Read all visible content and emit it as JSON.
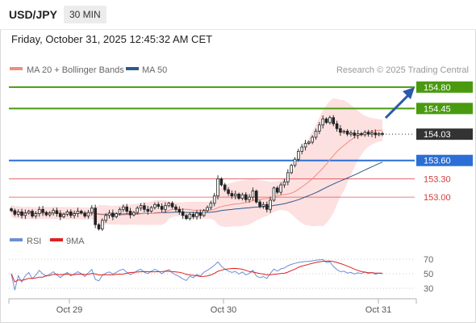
{
  "header": {
    "symbol": "USD/JPY",
    "timeframe": "30 MIN"
  },
  "datetime": "Friday, October 31, 2025 12:45:32 AM CET",
  "legend": {
    "ma20": "MA 20 + Bollinger Bands",
    "ma50": "MA 50",
    "ma20_color": "#f28b82",
    "ma50_color": "#2d5a8c"
  },
  "copyright": "Research © 2025 Trading Central",
  "rsi_legend": {
    "rsi": "RSI",
    "ma": "9MA",
    "rsi_color": "#6b8fd6",
    "ma_color": "#e02020"
  },
  "colors": {
    "green": "#4a9a10",
    "blue": "#2b6fd6",
    "red": "#e05555",
    "dark": "#333333"
  },
  "chart_data": [
    {
      "type": "candlestick",
      "ylim": [
        152.5,
        154.93
      ],
      "x_ticks": [
        "Oct 29",
        "Oct 30",
        "Oct 31"
      ],
      "levels": [
        {
          "value": 154.8,
          "label": "154.80",
          "style": "green-box"
        },
        {
          "value": 154.45,
          "label": "154.45",
          "style": "green-box"
        },
        {
          "value": 154.03,
          "label": "154.03",
          "style": "current"
        },
        {
          "value": 153.6,
          "label": "153.60",
          "style": "blue-box"
        },
        {
          "value": 153.3,
          "label": "153.30",
          "style": "red-text"
        },
        {
          "value": 153.0,
          "label": "153.00",
          "style": "red-text"
        }
      ],
      "closes": [
        152.78,
        152.72,
        152.76,
        152.7,
        152.74,
        152.77,
        152.69,
        152.73,
        152.8,
        152.75,
        152.71,
        152.74,
        152.78,
        152.73,
        152.68,
        152.72,
        152.76,
        152.7,
        152.73,
        152.77,
        152.74,
        152.69,
        152.75,
        152.82,
        152.55,
        152.48,
        152.62,
        152.7,
        152.74,
        152.68,
        152.73,
        152.8,
        152.84,
        152.77,
        152.71,
        152.75,
        152.82,
        152.86,
        152.8,
        152.77,
        152.83,
        152.88,
        152.85,
        152.8,
        152.86,
        152.9,
        152.84,
        152.8,
        152.76,
        152.7,
        152.65,
        152.72,
        152.68,
        152.74,
        152.7,
        152.78,
        152.83,
        152.9,
        153.02,
        153.3,
        153.2,
        153.12,
        153.06,
        153.02,
        153.05,
        152.98,
        153.04,
        152.96,
        153.0,
        153.1,
        152.92,
        152.85,
        152.88,
        152.8,
        152.95,
        153.15,
        153.08,
        153.2,
        153.25,
        153.4,
        153.52,
        153.62,
        153.75,
        153.82,
        153.88,
        153.9,
        153.98,
        154.08,
        154.18,
        154.28,
        154.22,
        154.3,
        154.2,
        154.12,
        154.06,
        154.08,
        154.03,
        154.05,
        154.01,
        154.04,
        154.02,
        154.06,
        154.03,
        154.05,
        154.02,
        154.04,
        154.03
      ]
    },
    {
      "type": "line",
      "title": "RSI",
      "series": [
        {
          "name": "RSI"
        },
        {
          "name": "9MA"
        }
      ],
      "ylim": [
        20,
        80
      ],
      "y_ticks": [
        70,
        50,
        30
      ]
    }
  ]
}
